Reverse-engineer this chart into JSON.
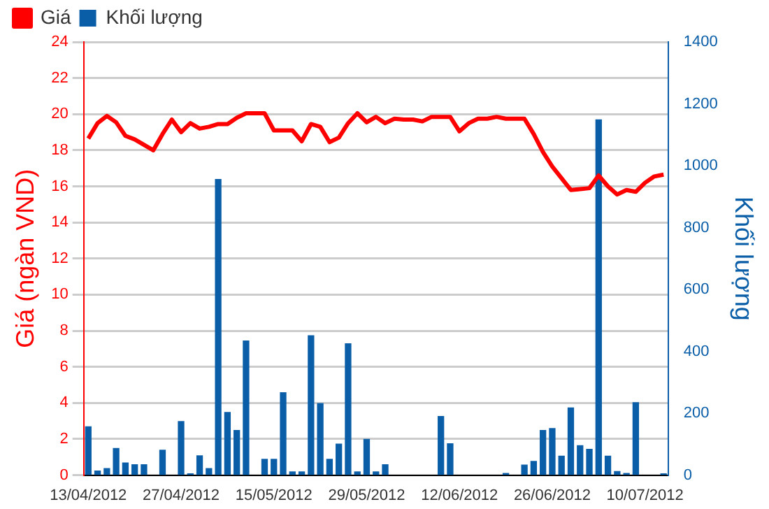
{
  "chart_data": {
    "type": "bar",
    "categories": [
      "13/04/2012",
      null,
      null,
      null,
      null,
      null,
      null,
      null,
      null,
      null,
      "27/04/2012",
      null,
      null,
      null,
      null,
      null,
      null,
      null,
      null,
      null,
      "15/05/2012",
      null,
      null,
      null,
      null,
      null,
      null,
      null,
      null,
      null,
      "29/05/2012",
      null,
      null,
      null,
      null,
      null,
      null,
      null,
      null,
      null,
      "12/06/2012",
      null,
      null,
      null,
      null,
      null,
      null,
      null,
      null,
      null,
      "26/06/2012",
      null,
      null,
      null,
      null,
      null,
      null,
      null,
      null,
      null,
      "10/07/2012",
      null,
      null
    ],
    "ylabel": "Giá (ngàn VND)",
    "y2label": "Khối lượng",
    "ylim": [
      0,
      24
    ],
    "yticks": [
      0,
      2,
      4,
      6,
      8,
      10,
      12,
      14,
      16,
      18,
      20,
      22,
      24
    ],
    "y2lim": [
      0,
      1400
    ],
    "y2ticks": [
      0,
      200,
      400,
      600,
      800,
      1000,
      1200,
      1400
    ],
    "grid": "y",
    "legend": "top left",
    "marker": "none",
    "series": [
      {
        "name": "Giá",
        "type": "line",
        "color": "#ff0000",
        "values": [
          18.65,
          19.5,
          19.9,
          19.55,
          18.8,
          18.6,
          18.3,
          18.0,
          18.9,
          19.7,
          19.0,
          19.5,
          19.2,
          19.3,
          19.45,
          19.45,
          19.8,
          20.05,
          20.05,
          20.05,
          19.1,
          19.1,
          19.1,
          18.5,
          19.45,
          19.3,
          18.45,
          18.7,
          19.5,
          20.05,
          19.55,
          19.85,
          19.5,
          19.75,
          19.7,
          19.7,
          19.6,
          19.85,
          19.85,
          19.85,
          19.05,
          19.5,
          19.75,
          19.75,
          19.85,
          19.75,
          19.75,
          19.75,
          18.9,
          17.9,
          17.1,
          16.45,
          15.8,
          15.85,
          15.9,
          16.6,
          16.0,
          15.55,
          15.8,
          15.7,
          16.2,
          16.55,
          16.65
        ]
      },
      {
        "name": "Khối lượng",
        "axis": "y2",
        "color": "#0a5ea8",
        "values": [
          158,
          15,
          23,
          88,
          41,
          35,
          35,
          0,
          82,
          0,
          175,
          6,
          64,
          23,
          957,
          204,
          146,
          435,
          0,
          53,
          53,
          268,
          12,
          12,
          452,
          233,
          53,
          102,
          426,
          12,
          117,
          12,
          35,
          0,
          0,
          0,
          0,
          0,
          191,
          103,
          0,
          0,
          0,
          0,
          0,
          7,
          0,
          34,
          46,
          146,
          152,
          63,
          219,
          97,
          85,
          1150,
          63,
          13,
          7,
          236,
          0,
          0,
          6
        ]
      }
    ]
  }
}
